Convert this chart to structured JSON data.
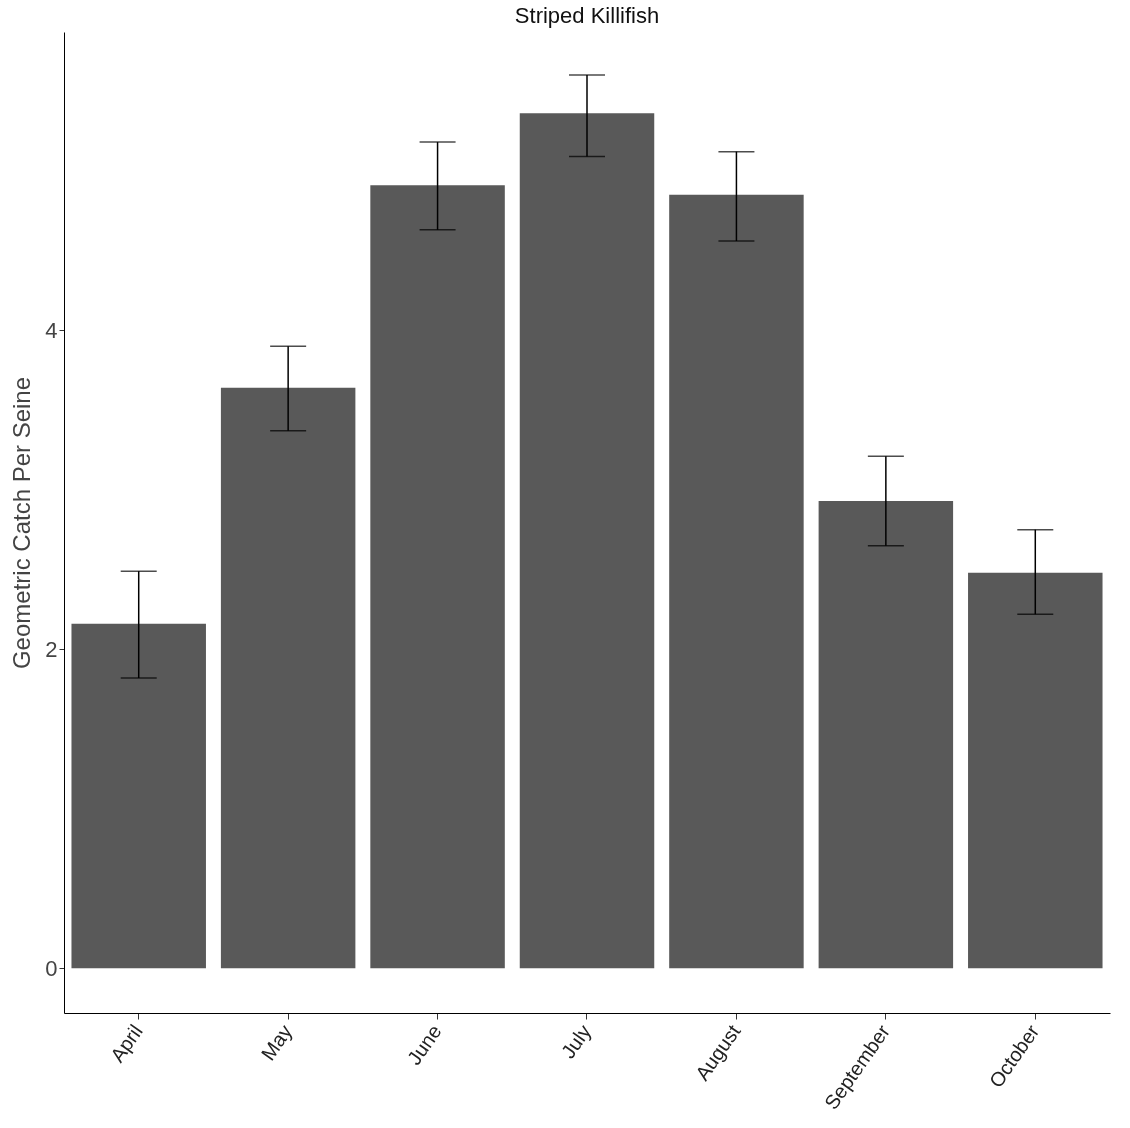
{
  "chart_data": {
    "type": "bar",
    "title": "Striped Killifish",
    "ylabel": "Geometric Catch Per Seine",
    "categories": [
      "April",
      "May",
      "June",
      "July",
      "August",
      "September",
      "October"
    ],
    "values": [
      2.16,
      3.64,
      4.91,
      5.36,
      4.85,
      2.93,
      2.48
    ],
    "errors": [
      [
        1.82,
        2.49
      ],
      [
        3.37,
        3.9
      ],
      [
        4.63,
        5.18
      ],
      [
        5.09,
        5.6
      ],
      [
        4.56,
        5.12
      ],
      [
        2.65,
        3.21
      ],
      [
        2.22,
        2.75
      ]
    ],
    "color": "#595959",
    "ylim": [
      -0.28,
      5.87
    ],
    "yticks": [
      0,
      2,
      4
    ],
    "grid": false
  }
}
